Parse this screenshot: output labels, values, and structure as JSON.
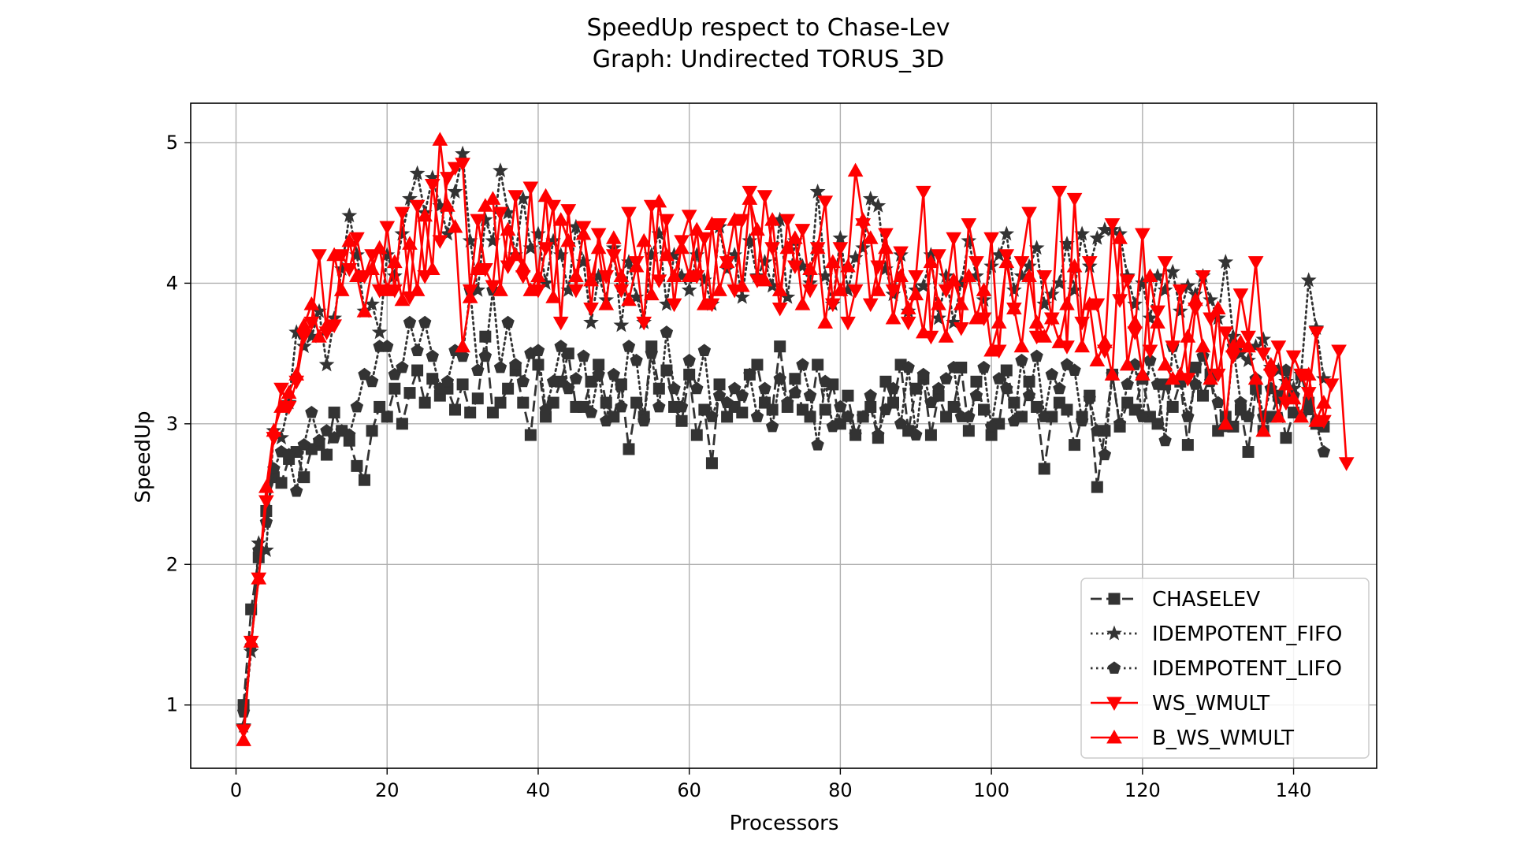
{
  "chart_data": {
    "type": "line",
    "title": "SpeedUp respect to Chase-Lev",
    "subtitle": "Graph: Undirected TORUS_3D",
    "xlabel": "Processors",
    "ylabel": "SpeedUp",
    "xlim": [
      -6,
      151
    ],
    "ylim": [
      0.55,
      5.28
    ],
    "xticks": [
      0,
      20,
      40,
      60,
      80,
      100,
      120,
      140
    ],
    "yticks": [
      1,
      2,
      3,
      4,
      5
    ],
    "grid": true,
    "legend_position": "lower-right",
    "x_start": 1,
    "series": [
      {
        "name": "CHASELEV",
        "color": "#333333",
        "marker": "square",
        "linestyle": "dashed",
        "values": [
          1.0,
          1.68,
          2.05,
          2.38,
          2.62,
          2.58,
          2.75,
          2.8,
          2.62,
          2.82,
          2.85,
          2.78,
          3.08,
          2.95,
          2.88,
          2.7,
          2.6,
          2.95,
          3.12,
          3.05,
          3.25,
          3.0,
          3.22,
          3.38,
          3.15,
          3.32,
          3.2,
          3.25,
          3.1,
          3.28,
          3.08,
          3.18,
          3.62,
          3.08,
          3.15,
          3.25,
          3.38,
          3.15,
          2.92,
          3.42,
          3.05,
          3.15,
          3.3,
          3.5,
          3.12,
          3.12,
          3.3,
          3.42,
          3.15,
          3.05,
          3.28,
          2.82,
          3.15,
          3.05,
          3.55,
          3.25,
          3.38,
          3.12,
          3.02,
          3.35,
          2.92,
          3.1,
          2.72,
          3.28,
          3.05,
          3.12,
          3.08,
          3.35,
          3.42,
          3.15,
          3.1,
          3.55,
          3.12,
          3.32,
          3.1,
          3.05,
          3.42,
          3.1,
          3.28,
          3.0,
          3.2,
          2.92,
          3.05,
          3.12,
          2.9,
          3.3,
          3.15,
          3.42,
          2.95,
          3.25,
          3.32,
          2.92,
          3.2,
          3.05,
          3.12,
          3.4,
          2.95,
          3.3,
          3.1,
          2.92,
          3.0,
          3.38,
          3.15,
          3.05,
          3.3,
          3.12,
          2.68,
          3.05,
          3.15,
          3.1,
          2.85,
          3.05,
          3.2,
          2.55,
          2.95,
          3.35,
          2.98,
          3.15,
          3.1,
          3.32,
          3.05,
          3.0,
          3.28,
          3.12,
          3.3,
          2.85,
          3.4,
          3.2,
          3.35,
          2.95,
          3.05,
          2.98,
          3.1,
          2.8,
          3.25,
          2.95,
          3.05,
          3.2,
          2.9,
          3.08,
          3.35,
          3.15,
          3.0,
          2.98
        ]
      },
      {
        "name": "IDEMPOTENT_FIFO",
        "color": "#333333",
        "marker": "star",
        "linestyle": "dotted",
        "values": [
          0.85,
          1.38,
          2.15,
          2.1,
          2.95,
          2.9,
          3.15,
          3.65,
          3.55,
          3.62,
          3.8,
          3.42,
          3.75,
          4.1,
          4.48,
          4.2,
          3.8,
          3.85,
          3.65,
          4.2,
          4.05,
          4.35,
          4.6,
          4.78,
          4.5,
          4.75,
          4.55,
          4.35,
          4.65,
          4.92,
          4.3,
          3.95,
          4.45,
          4.3,
          4.8,
          4.5,
          4.2,
          4.6,
          4.25,
          4.35,
          4.0,
          4.3,
          4.2,
          3.95,
          4.4,
          4.15,
          3.72,
          4.05,
          3.88,
          4.25,
          3.7,
          4.15,
          3.9,
          3.72,
          4.2,
          4.35,
          3.85,
          4.2,
          4.05,
          3.95,
          4.2,
          4.02,
          3.85,
          4.4,
          4.1,
          4.2,
          3.9,
          4.3,
          4.05,
          4.15,
          3.98,
          4.45,
          3.9,
          4.3,
          4.12,
          4.0,
          4.65,
          4.05,
          3.85,
          4.32,
          3.95,
          4.18,
          4.25,
          4.6,
          4.55,
          4.1,
          3.92,
          4.2,
          3.8,
          3.95,
          3.98,
          4.2,
          3.75,
          4.05,
          3.72,
          4.0,
          4.3,
          4.05,
          3.88,
          4.12,
          4.2,
          4.35,
          3.95,
          4.05,
          4.12,
          4.25,
          3.85,
          3.92,
          4.0,
          4.28,
          3.95,
          4.35,
          4.12,
          4.32,
          4.38,
          4.38,
          4.35,
          4.05,
          3.85,
          4.0,
          3.75,
          4.05,
          3.95,
          4.08,
          3.8,
          3.98,
          3.92,
          4.05,
          3.88,
          3.75,
          4.15,
          3.62,
          3.5,
          3.45,
          3.55,
          3.6,
          3.4,
          3.38,
          3.3,
          3.25,
          3.35,
          4.02,
          3.68,
          3.32
        ]
      },
      {
        "name": "IDEMPOTENT_LIFO",
        "color": "#333333",
        "marker": "pentagon",
        "linestyle": "dotted",
        "values": [
          0.95,
          1.42,
          2.1,
          2.3,
          2.68,
          2.8,
          2.78,
          2.52,
          2.85,
          3.08,
          2.88,
          2.95,
          2.9,
          2.95,
          2.92,
          3.12,
          3.35,
          3.3,
          3.55,
          3.55,
          3.35,
          3.4,
          3.72,
          3.52,
          3.72,
          3.48,
          3.25,
          3.3,
          3.52,
          3.48,
          3.95,
          3.38,
          3.48,
          3.95,
          3.4,
          3.72,
          3.42,
          3.3,
          3.5,
          3.52,
          3.1,
          3.3,
          3.55,
          3.25,
          3.32,
          3.48,
          3.08,
          3.35,
          3.02,
          3.35,
          3.12,
          3.55,
          3.45,
          3.02,
          3.5,
          3.12,
          3.65,
          3.25,
          3.12,
          3.45,
          3.25,
          3.52,
          3.05,
          3.2,
          3.15,
          3.25,
          3.2,
          3.35,
          3.05,
          3.25,
          2.98,
          3.32,
          3.15,
          3.22,
          3.42,
          3.2,
          2.85,
          3.3,
          2.98,
          3.12,
          3.05,
          2.92,
          3.05,
          3.2,
          2.92,
          3.1,
          3.25,
          3.0,
          3.4,
          2.92,
          3.35,
          3.15,
          3.25,
          3.32,
          3.4,
          3.05,
          3.05,
          3.2,
          3.4,
          2.98,
          3.32,
          3.25,
          3.02,
          3.45,
          3.2,
          3.48,
          3.05,
          3.35,
          3.25,
          3.42,
          3.38,
          3.02,
          3.18,
          2.95,
          2.78,
          3.35,
          3.0,
          3.28,
          3.42,
          3.05,
          3.45,
          3.28,
          2.88,
          3.55,
          3.32,
          3.05,
          3.28,
          3.48,
          3.3,
          3.15,
          2.98,
          3.55,
          3.15,
          3.05,
          3.32,
          3.05,
          3.25,
          3.18,
          3.38,
          3.2,
          3.05,
          3.1,
          3.0,
          2.8
        ]
      },
      {
        "name": "WS_WMULT",
        "color": "#ff0000",
        "marker": "triangle-down",
        "linestyle": "solid",
        "values": [
          0.82,
          1.45,
          1.9,
          2.45,
          2.9,
          3.25,
          3.12,
          3.3,
          3.62,
          3.72,
          4.2,
          3.65,
          3.7,
          4.2,
          4.1,
          4.32,
          4.05,
          4.2,
          3.95,
          4.4,
          3.95,
          4.5,
          3.9,
          4.55,
          4.05,
          4.7,
          4.3,
          4.75,
          4.82,
          4.85,
          3.95,
          4.45,
          4.1,
          3.98,
          4.5,
          4.12,
          4.62,
          4.05,
          4.68,
          3.95,
          4.25,
          4.55,
          3.72,
          4.52,
          3.95,
          4.4,
          3.82,
          4.35,
          4.05,
          4.2,
          3.95,
          4.5,
          4.15,
          3.72,
          4.55,
          4.02,
          4.45,
          3.85,
          4.3,
          4.48,
          4.05,
          4.32,
          3.85,
          4.42,
          4.15,
          3.95,
          4.45,
          4.65,
          4.02,
          4.62,
          4.25,
          3.82,
          4.45,
          4.12,
          4.38,
          3.95,
          4.25,
          4.58,
          3.85,
          4.25,
          3.72,
          3.95,
          4.42,
          3.85,
          4.12,
          4.35,
          3.95,
          4.22,
          3.72,
          4.05,
          4.65,
          3.62,
          4.2,
          3.95,
          4.32,
          3.68,
          4.42,
          4.15,
          3.75,
          4.32,
          3.52,
          4.2,
          3.82,
          4.15,
          4.5,
          3.62,
          4.05,
          3.75,
          4.65,
          3.55,
          4.6,
          3.72,
          4.15,
          3.85,
          3.52,
          4.42,
          3.88,
          4.02,
          3.65,
          4.35,
          3.52,
          3.8,
          4.15,
          3.55,
          3.95,
          3.32,
          3.82,
          4.05,
          3.75,
          3.35,
          3.65,
          3.48,
          3.92,
          3.62,
          4.15,
          3.5,
          3.35,
          3.55,
          3.15,
          3.48,
          3.35,
          3.22,
          3.65,
          3.02,
          3.28,
          3.52,
          2.72
        ]
      },
      {
        "name": "B_WS_WMULT",
        "color": "#ff0000",
        "marker": "triangle-up",
        "linestyle": "solid",
        "values": [
          0.75,
          1.45,
          1.9,
          2.55,
          2.95,
          3.12,
          3.22,
          3.35,
          3.7,
          3.85,
          3.62,
          3.7,
          4.2,
          3.95,
          4.3,
          4.05,
          3.8,
          4.1,
          4.25,
          3.95,
          4.15,
          3.88,
          4.28,
          3.95,
          4.48,
          4.1,
          5.02,
          4.55,
          4.4,
          3.55,
          3.9,
          4.1,
          4.55,
          4.6,
          3.95,
          4.38,
          4.2,
          4.12,
          3.95,
          4.05,
          4.62,
          3.9,
          4.45,
          4.3,
          4.05,
          4.35,
          4.02,
          4.25,
          3.85,
          4.32,
          4.05,
          3.88,
          4.12,
          4.3,
          3.92,
          4.58,
          4.2,
          4.05,
          4.25,
          4.05,
          4.38,
          3.85,
          4.42,
          3.95,
          4.15,
          4.45,
          3.98,
          4.6,
          4.38,
          4.02,
          4.45,
          3.95,
          4.25,
          4.32,
          3.85,
          4.1,
          4.25,
          3.72,
          4.15,
          3.95,
          4.12,
          4.8,
          4.45,
          4.32,
          3.95,
          4.25,
          3.75,
          4.05,
          3.82,
          3.92,
          3.65,
          4.15,
          3.85,
          3.62,
          4.02,
          3.85,
          4.05,
          3.75,
          3.95,
          3.52,
          3.72,
          4.15,
          3.82,
          3.55,
          4.05,
          3.72,
          3.62,
          3.75,
          3.58,
          3.85,
          4.12,
          3.55,
          3.85,
          3.45,
          3.58,
          3.35,
          4.32,
          3.42,
          3.72,
          3.35,
          4.05,
          3.72,
          3.42,
          3.32,
          3.35,
          3.62,
          3.88,
          3.55,
          3.32,
          3.82,
          3.0,
          3.55,
          3.58,
          3.55,
          3.32,
          2.95,
          3.42,
          3.05,
          3.28,
          3.18,
          3.05,
          3.35,
          3.02,
          3.15
        ]
      }
    ]
  }
}
